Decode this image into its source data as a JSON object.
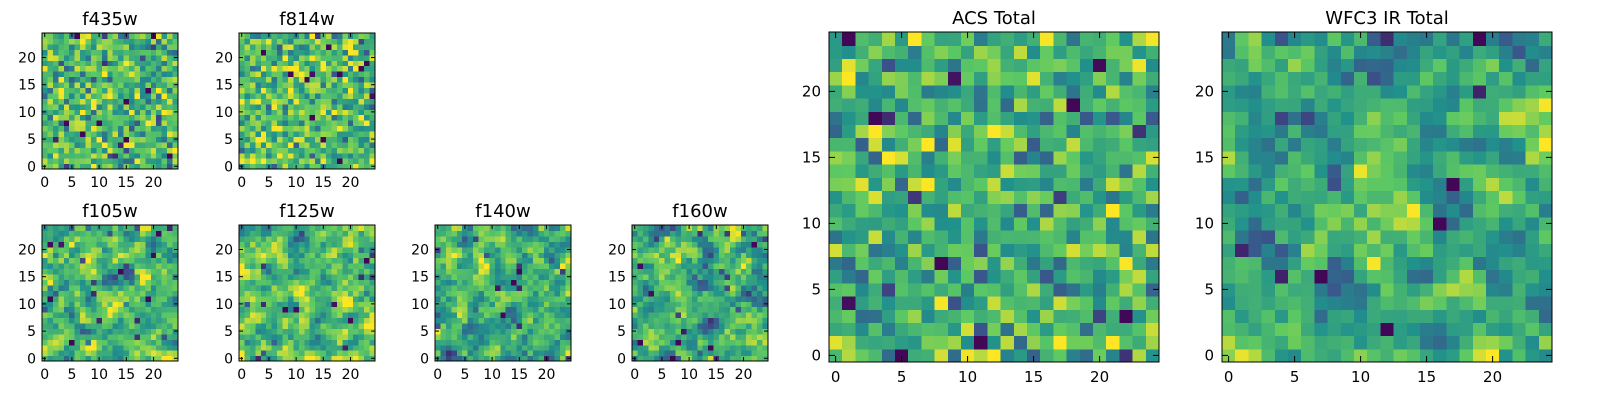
{
  "figure": {
    "background": "#ffffff",
    "colormap": "viridis",
    "colormap_stops": [
      "#440154",
      "#3b528b",
      "#21918c",
      "#5ec962",
      "#fde725"
    ]
  },
  "chart_data": [
    {
      "id": "f435w",
      "type": "heatmap",
      "title": "f435w",
      "grid_size": 25,
      "xlim": [
        0,
        24
      ],
      "ylim": [
        0,
        24
      ],
      "xticks": [
        0,
        5,
        10,
        15,
        20
      ],
      "yticks": [
        0,
        5,
        10,
        15,
        20
      ],
      "value_range": [
        0,
        1
      ],
      "level": 0.68,
      "pattern": "noise"
    },
    {
      "id": "f814w",
      "type": "heatmap",
      "title": "f814w",
      "grid_size": 25,
      "xlim": [
        0,
        24
      ],
      "ylim": [
        0,
        24
      ],
      "xticks": [
        0,
        5,
        10,
        15,
        20
      ],
      "yticks": [
        0,
        5,
        10,
        15,
        20
      ],
      "value_range": [
        0,
        1
      ],
      "level": 0.7,
      "pattern": "noise"
    },
    {
      "id": "f105w",
      "type": "heatmap",
      "title": "f105w",
      "grid_size": 25,
      "xlim": [
        0,
        24
      ],
      "ylim": [
        0,
        24
      ],
      "xticks": [
        0,
        5,
        10,
        15,
        20
      ],
      "yticks": [
        0,
        5,
        10,
        15,
        20
      ],
      "value_range": [
        0,
        1
      ],
      "level": 0.66,
      "pattern": "blobs"
    },
    {
      "id": "f125w",
      "type": "heatmap",
      "title": "f125w",
      "grid_size": 25,
      "xlim": [
        0,
        24
      ],
      "ylim": [
        0,
        24
      ],
      "xticks": [
        0,
        5,
        10,
        15,
        20
      ],
      "yticks": [
        0,
        5,
        10,
        15,
        20
      ],
      "value_range": [
        0,
        1
      ],
      "level": 0.68,
      "pattern": "blobs"
    },
    {
      "id": "f140w",
      "type": "heatmap",
      "title": "f140w",
      "grid_size": 25,
      "xlim": [
        0,
        24
      ],
      "ylim": [
        0,
        24
      ],
      "xticks": [
        0,
        5,
        10,
        15,
        20
      ],
      "yticks": [
        0,
        5,
        10,
        15,
        20
      ],
      "value_range": [
        0,
        1
      ],
      "level": 0.62,
      "pattern": "blobs"
    },
    {
      "id": "f160w",
      "type": "heatmap",
      "title": "f160w",
      "grid_size": 25,
      "xlim": [
        0,
        24
      ],
      "ylim": [
        0,
        24
      ],
      "xticks": [
        0,
        5,
        10,
        15,
        20
      ],
      "yticks": [
        0,
        5,
        10,
        15,
        20
      ],
      "value_range": [
        0,
        1
      ],
      "level": 0.64,
      "pattern": "blobs"
    },
    {
      "id": "acs-total",
      "type": "heatmap",
      "title": "ACS Total",
      "grid_size": 25,
      "xlim": [
        0,
        24
      ],
      "ylim": [
        0,
        24
      ],
      "xticks": [
        0,
        5,
        10,
        15,
        20
      ],
      "yticks": [
        0,
        5,
        10,
        15,
        20
      ],
      "value_range": [
        0,
        1
      ],
      "level": 0.64,
      "pattern": "noise"
    },
    {
      "id": "wfc3-ir-total",
      "type": "heatmap",
      "title": "WFC3 IR Total",
      "grid_size": 25,
      "xlim": [
        0,
        24
      ],
      "ylim": [
        0,
        24
      ],
      "xticks": [
        0,
        5,
        10,
        15,
        20
      ],
      "yticks": [
        0,
        5,
        10,
        15,
        20
      ],
      "value_range": [
        0,
        1
      ],
      "level": 0.58,
      "pattern": "central-source"
    }
  ]
}
